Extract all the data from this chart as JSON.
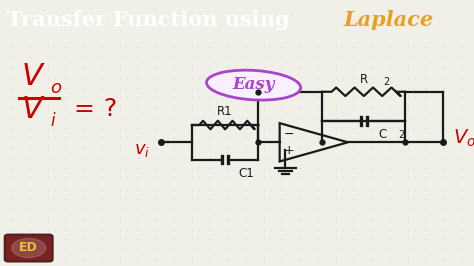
{
  "title_text": "Transfer Function using ",
  "title_highlight": "Laplace",
  "title_bg": "#484f7a",
  "title_text_color": "#ffffff",
  "title_highlight_color": "#e8a020",
  "body_bg": "#f0f0e8",
  "dot_color": "#c0c0b0",
  "eq_color": "#cc0000",
  "vi_label_color": "#cc0000",
  "Vo_label_color": "#cc0000",
  "circuit_color": "#1a1a1a",
  "easy_text": "Easy",
  "easy_color": "#aa44cc",
  "easy_bg": "#f8f0ff",
  "logo_bg": "#7a2020",
  "logo_text": "ED",
  "logo_text_color": "#e8c040",
  "logo_circle_color": "#c0c0c0"
}
